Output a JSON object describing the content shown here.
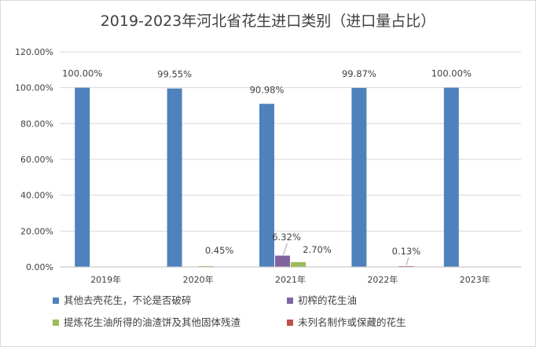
{
  "chart_data": {
    "type": "bar",
    "title": "2019-2023年河北省花生进口类别（进口量占比）",
    "categories": [
      "2019年",
      "2020年",
      "2021年",
      "2022年",
      "2023年"
    ],
    "series": [
      {
        "name": "其他去壳花生，不论是否破碎",
        "color": "#4f81bd",
        "values": [
          100.0,
          99.55,
          90.98,
          99.87,
          100.0
        ]
      },
      {
        "name": "初榨的花生油",
        "color": "#8064a2",
        "values": [
          null,
          null,
          6.32,
          null,
          null
        ]
      },
      {
        "name": "提炼花生油所得的油渣饼及其他固体残渣",
        "color": "#9bbb59",
        "values": [
          null,
          0.45,
          2.7,
          null,
          null
        ]
      },
      {
        "name": "未列名制作或保藏的花生",
        "color": "#c0504d",
        "values": [
          null,
          null,
          null,
          0.13,
          null
        ]
      }
    ],
    "data_labels": [
      {
        "series": 0,
        "category": 0,
        "text": "100.00%"
      },
      {
        "series": 0,
        "category": 1,
        "text": "99.55%"
      },
      {
        "series": 0,
        "category": 2,
        "text": "90.98%"
      },
      {
        "series": 0,
        "category": 3,
        "text": "99.87%"
      },
      {
        "series": 0,
        "category": 4,
        "text": "100.00%"
      },
      {
        "series": 2,
        "category": 1,
        "text": "0.45%"
      },
      {
        "series": 1,
        "category": 2,
        "text": "6.32%"
      },
      {
        "series": 2,
        "category": 2,
        "text": "2.70%"
      },
      {
        "series": 3,
        "category": 3,
        "text": "0.13%"
      }
    ],
    "y_ticks": [
      "0.00%",
      "20.00%",
      "40.00%",
      "60.00%",
      "80.00%",
      "100.00%",
      "120.00%"
    ],
    "y_tick_values": [
      0,
      20,
      40,
      60,
      80,
      100,
      120
    ],
    "ylim": [
      0,
      120
    ],
    "xlabel": "",
    "ylabel": "",
    "grid": true,
    "legend_position": "bottom"
  }
}
